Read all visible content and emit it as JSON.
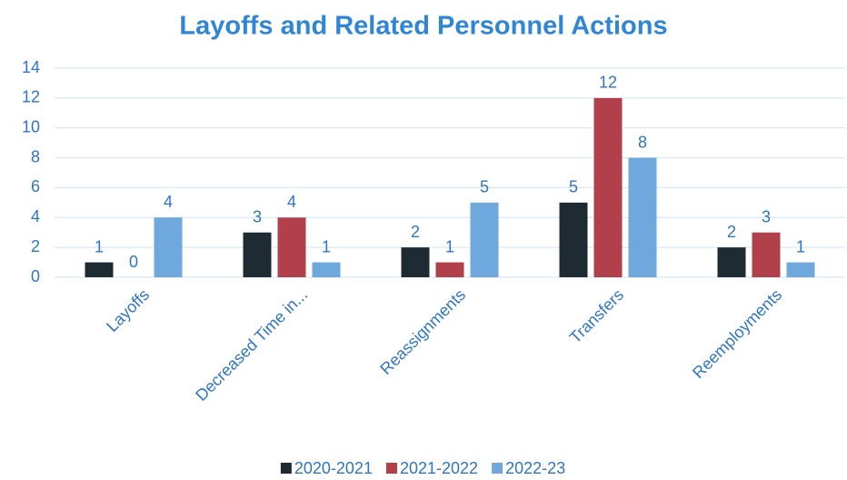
{
  "chart_data": {
    "type": "bar",
    "title": "Layoffs and Related Personnel Actions",
    "categories": [
      "Layoffs",
      "Decreased Time in...",
      "Reassignments",
      "Transfers",
      "Reemployments"
    ],
    "series": [
      {
        "name": "2020-2021",
        "color": "#1f2b33",
        "values": [
          1,
          3,
          2,
          5,
          2
        ]
      },
      {
        "name": "2021-2022",
        "color": "#b1404a",
        "values": [
          0,
          4,
          1,
          12,
          3
        ]
      },
      {
        "name": "2022-23",
        "color": "#6fa8dc",
        "values": [
          4,
          1,
          5,
          8,
          1
        ]
      }
    ],
    "ylim": [
      0,
      14
    ],
    "yticks": [
      0,
      2,
      4,
      6,
      8,
      10,
      12,
      14
    ],
    "grid": true,
    "legend": "bottom"
  }
}
